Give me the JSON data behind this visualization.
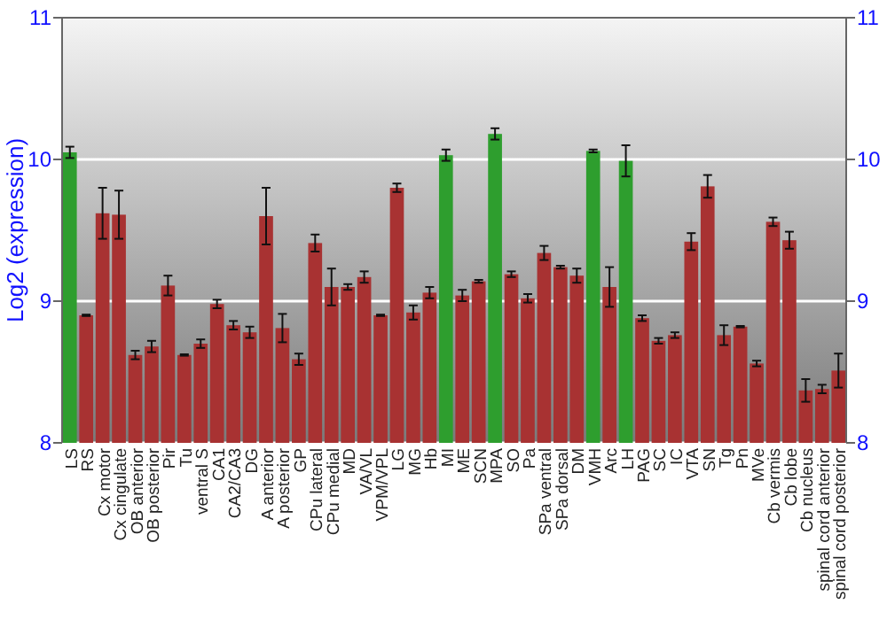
{
  "chart_data": {
    "type": "bar",
    "ylabel": "Log2 (expression)",
    "categories": [
      "LS",
      "RS",
      "Cx motor",
      "Cx cingulate",
      "OB anterior",
      "OB posterior",
      "Pir",
      "Tu",
      "ventral S",
      "CA1",
      "CA2/CA3",
      "DG",
      "A anterior",
      "A posterior",
      "GP",
      "CPu lateral",
      "CPu medial",
      "MD",
      "VA/VL",
      "VPM/VPL",
      "LG",
      "MG",
      "Hb",
      "MI",
      "ME",
      "SCN",
      "MPA",
      "SO",
      "Pa",
      "SPa ventral",
      "SPa dorsal",
      "DM",
      "VMH",
      "Arc",
      "LH",
      "PAG",
      "SC",
      "IC",
      "VTA",
      "SN",
      "Tg",
      "Pn",
      "MVe",
      "Cb vermis",
      "Cb lobe",
      "Cb nucleus",
      "spinal cord anterior",
      "spinal cord posterior"
    ],
    "values": [
      10.05,
      8.9,
      9.62,
      9.61,
      8.62,
      8.68,
      9.11,
      8.62,
      8.7,
      8.98,
      8.83,
      8.78,
      9.6,
      8.81,
      8.59,
      9.41,
      9.1,
      9.1,
      9.17,
      8.9,
      9.8,
      8.92,
      9.06,
      10.03,
      9.04,
      9.14,
      10.18,
      9.19,
      9.02,
      9.34,
      9.24,
      9.18,
      10.06,
      9.1,
      9.99,
      8.88,
      8.72,
      8.76,
      9.42,
      9.81,
      8.76,
      8.82,
      8.56,
      9.56,
      9.43,
      8.37,
      8.38,
      8.51
    ],
    "errors": [
      0.04,
      0.005,
      0.18,
      0.17,
      0.03,
      0.04,
      0.07,
      0.005,
      0.03,
      0.03,
      0.03,
      0.04,
      0.2,
      0.1,
      0.04,
      0.06,
      0.13,
      0.02,
      0.04,
      0.005,
      0.03,
      0.05,
      0.04,
      0.04,
      0.04,
      0.01,
      0.04,
      0.02,
      0.03,
      0.05,
      0.01,
      0.05,
      0.01,
      0.14,
      0.11,
      0.02,
      0.02,
      0.02,
      0.06,
      0.08,
      0.07,
      0.005,
      0.02,
      0.03,
      0.06,
      0.08,
      0.03,
      0.12
    ],
    "colors": [
      "#2e9e2e",
      "#a83232",
      "#a83232",
      "#a83232",
      "#a83232",
      "#a83232",
      "#a83232",
      "#a83232",
      "#a83232",
      "#a83232",
      "#a83232",
      "#a83232",
      "#a83232",
      "#a83232",
      "#a83232",
      "#a83232",
      "#a83232",
      "#a83232",
      "#a83232",
      "#a83232",
      "#a83232",
      "#a83232",
      "#a83232",
      "#2e9e2e",
      "#a83232",
      "#a83232",
      "#2e9e2e",
      "#a83232",
      "#a83232",
      "#a83232",
      "#a83232",
      "#a83232",
      "#2e9e2e",
      "#a83232",
      "#2e9e2e",
      "#a83232",
      "#a83232",
      "#a83232",
      "#a83232",
      "#a83232",
      "#a83232",
      "#a83232",
      "#a83232",
      "#a83232",
      "#a83232",
      "#a83232",
      "#a83232",
      "#a83232"
    ],
    "ylim": [
      8,
      11
    ],
    "yticks": [
      8,
      9,
      10,
      11
    ],
    "y2lim": [
      8,
      11
    ],
    "y2ticks": [
      8,
      9,
      10,
      11
    ],
    "grid": "y"
  }
}
